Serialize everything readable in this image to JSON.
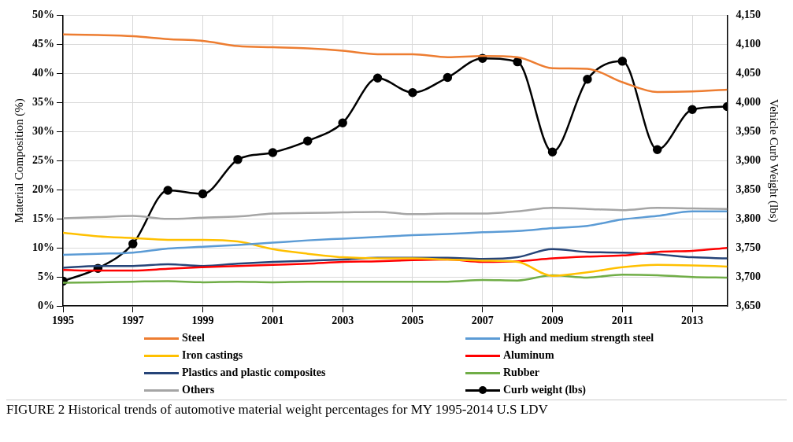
{
  "chart_data": {
    "type": "line",
    "xlabel": null,
    "ylabel": "Material Composition (%)",
    "y2label": "Vehicle Curb Weight (lbs)",
    "x": [
      1995,
      1996,
      1997,
      1998,
      1999,
      2000,
      2001,
      2002,
      2003,
      2004,
      2005,
      2006,
      2007,
      2008,
      2009,
      2010,
      2011,
      2012,
      2013,
      2014
    ],
    "xlim": [
      1995,
      2014
    ],
    "xticks": [
      1995,
      1997,
      1999,
      2001,
      2003,
      2005,
      2007,
      2009,
      2011,
      2013
    ],
    "ylim": [
      0,
      50
    ],
    "yticks": [
      {
        "value": 0,
        "label": "0%"
      },
      {
        "value": 5,
        "label": "5%"
      },
      {
        "value": 10,
        "label": "10%"
      },
      {
        "value": 15,
        "label": "15%"
      },
      {
        "value": 20,
        "label": "20%"
      },
      {
        "value": 25,
        "label": "25%"
      },
      {
        "value": 30,
        "label": "30%"
      },
      {
        "value": 35,
        "label": "35%"
      },
      {
        "value": 40,
        "label": "40%"
      },
      {
        "value": 45,
        "label": "45%"
      },
      {
        "value": 50,
        "label": "50%"
      }
    ],
    "y2lim": [
      3650,
      4150
    ],
    "y2ticks": [
      {
        "value": 3650,
        "label": "3,650"
      },
      {
        "value": 3700,
        "label": "3,700"
      },
      {
        "value": 3750,
        "label": "3,750"
      },
      {
        "value": 3800,
        "label": "3,800"
      },
      {
        "value": 3850,
        "label": "3,850"
      },
      {
        "value": 3900,
        "label": "3,900"
      },
      {
        "value": 3950,
        "label": "3,950"
      },
      {
        "value": 4000,
        "label": "4,000"
      },
      {
        "value": 4050,
        "label": "4,050"
      },
      {
        "value": 4100,
        "label": "4,100"
      },
      {
        "value": 4150,
        "label": "4,150"
      }
    ],
    "grid": true,
    "legend": "bottom",
    "marker": "none",
    "line_style": "solid",
    "series": [
      {
        "name": "Steel",
        "color": "#ed7d31",
        "values": [
          46.7,
          46.6,
          46.4,
          45.9,
          45.6,
          44.7,
          44.5,
          44.3,
          43.9,
          43.3,
          43.3,
          42.8,
          43.0,
          42.8,
          40.9,
          40.8,
          38.5,
          36.8,
          36.9,
          37.2
        ]
      },
      {
        "name": "High and medium strength steel",
        "color": "#5b9bd5",
        "values": [
          8.8,
          9.0,
          9.2,
          9.9,
          10.2,
          10.5,
          10.9,
          11.3,
          11.6,
          11.9,
          12.2,
          12.4,
          12.7,
          12.9,
          13.4,
          13.8,
          14.9,
          15.5,
          16.3,
          16.3
        ]
      },
      {
        "name": "Iron castings",
        "color": "#ffc000",
        "values": [
          12.6,
          12.0,
          11.7,
          11.4,
          11.4,
          11.1,
          9.8,
          9.0,
          8.4,
          8.2,
          8.2,
          8.0,
          7.8,
          7.6,
          5.2,
          5.8,
          6.7,
          7.1,
          7.0,
          6.8
        ]
      },
      {
        "name": "Aluminum",
        "color": "#ff0000",
        "values": [
          6.2,
          6.1,
          6.1,
          6.4,
          6.7,
          6.9,
          7.1,
          7.3,
          7.6,
          7.7,
          7.9,
          8.0,
          7.6,
          7.7,
          8.2,
          8.5,
          8.7,
          9.3,
          9.5,
          10.0
        ]
      },
      {
        "name": "Plastics and plastic composites",
        "color": "#264478",
        "values": [
          6.6,
          6.9,
          6.9,
          7.2,
          6.9,
          7.3,
          7.6,
          7.8,
          8.0,
          8.3,
          8.3,
          8.3,
          8.1,
          8.4,
          9.8,
          9.3,
          9.2,
          8.9,
          8.4,
          8.2
        ]
      },
      {
        "name": "Rubber",
        "color": "#70ad47",
        "values": [
          4.0,
          4.1,
          4.2,
          4.3,
          4.1,
          4.2,
          4.1,
          4.2,
          4.2,
          4.2,
          4.2,
          4.2,
          4.5,
          4.4,
          5.3,
          4.9,
          5.4,
          5.3,
          5.0,
          4.9
        ]
      },
      {
        "name": "Others",
        "color": "#a5a5a5",
        "values": [
          15.1,
          15.3,
          15.5,
          15.0,
          15.2,
          15.4,
          15.9,
          16.0,
          16.1,
          16.2,
          15.8,
          15.9,
          15.9,
          16.3,
          16.9,
          16.7,
          16.5,
          16.9,
          16.8,
          16.7
        ]
      },
      {
        "name": "Curb weight (lbs)",
        "color": "#000000",
        "axis": "y2",
        "marker": "circle",
        "values": [
          3693,
          3715,
          3757,
          3849,
          3843,
          3902,
          3914,
          3934,
          3965,
          4042,
          4017,
          4043,
          4076,
          4070,
          3915,
          4040,
          4071,
          3919,
          3988,
          3993
        ]
      }
    ],
    "annotations": [
      "FIGURE 2 Historical trends of automotive material weight percentages for MY 1995-2014 U.S LDV"
    ]
  }
}
